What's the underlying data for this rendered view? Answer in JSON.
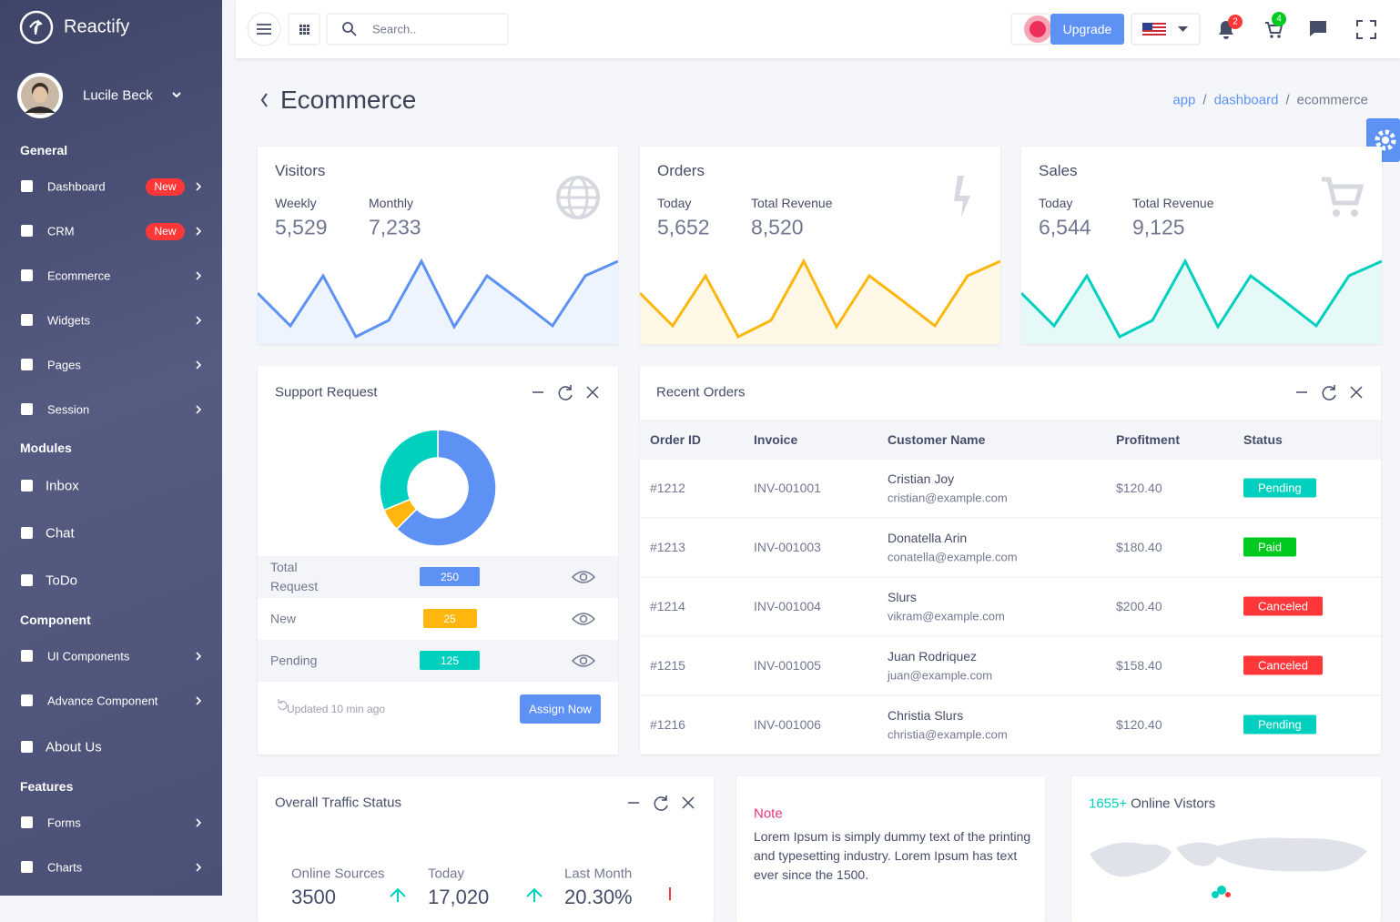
{
  "sidebar": {
    "brand": "Reactify",
    "user": "Lucile Beck",
    "groups": [
      {
        "title": "General",
        "items": [
          {
            "label": "Dashboard",
            "badge": "New",
            "submenu": true
          },
          {
            "label": "CRM",
            "badge": "New",
            "submenu": true
          },
          {
            "label": "Ecommerce",
            "submenu": true
          },
          {
            "label": "Widgets",
            "submenu": true
          },
          {
            "label": "Pages",
            "submenu": true
          },
          {
            "label": "Session",
            "submenu": true
          }
        ]
      },
      {
        "title": "Modules",
        "items": [
          {
            "label": "Inbox"
          },
          {
            "label": "Chat"
          },
          {
            "label": "ToDo"
          }
        ]
      },
      {
        "title": "Component",
        "items": [
          {
            "label": "UI Components",
            "submenu": true
          },
          {
            "label": "Advance Component",
            "submenu": true
          },
          {
            "label": "About Us"
          }
        ]
      },
      {
        "title": "Features",
        "items": [
          {
            "label": "Forms",
            "submenu": true
          },
          {
            "label": "Charts",
            "submenu": true
          }
        ]
      }
    ]
  },
  "header": {
    "search": "Search..",
    "upgrade": "Upgrade",
    "notifications": 2,
    "cart": 4
  },
  "page": {
    "title": "Ecommerce",
    "breadcrumb": [
      "app",
      "dashboard",
      "ecommerce"
    ]
  },
  "stats": [
    {
      "title": "Visitors",
      "color": "#5d92f4",
      "metrics": [
        {
          "label": "Weekly",
          "value": "5,529"
        },
        {
          "label": "Monthly",
          "value": "7,233"
        }
      ],
      "sparkline": [
        56,
        20,
        75,
        8,
        26,
        91,
        19,
        75,
        48,
        20,
        75,
        91
      ]
    },
    {
      "title": "Orders",
      "color": "#ffb70f",
      "metrics": [
        {
          "label": "Today",
          "value": "5,652"
        },
        {
          "label": "Total Revenue",
          "value": "8,520"
        }
      ],
      "sparkline": [
        56,
        20,
        75,
        8,
        26,
        91,
        19,
        75,
        48,
        20,
        75,
        91
      ]
    },
    {
      "title": "Sales",
      "color": "#00d0bd",
      "metrics": [
        {
          "label": "Today",
          "value": "6,544"
        },
        {
          "label": "Total Revenue",
          "value": "9,125"
        }
      ],
      "sparkline": [
        56,
        20,
        75,
        8,
        26,
        91,
        19,
        75,
        48,
        20,
        75,
        91
      ]
    }
  ],
  "support": {
    "title": "Support Request",
    "rows": [
      {
        "label": "Total Request",
        "value": 250,
        "color": "#5d92f4"
      },
      {
        "label": "New",
        "value": 25,
        "color": "#ffb70f"
      },
      {
        "label": "Pending",
        "value": 125,
        "color": "#00d0bd"
      }
    ],
    "updated": "Updated 10 min ago",
    "button": "Assign Now"
  },
  "orders": {
    "title": "Recent Orders",
    "columns": [
      "Order ID",
      "Invoice",
      "Customer Name",
      "Profitment",
      "Status"
    ],
    "rows": [
      {
        "id": "#1212",
        "invoice": "INV-001001",
        "name": "Cristian Joy",
        "email": "cristian@example.com",
        "profit": "$120.40",
        "status": "Pending",
        "status_color": "#00d0bd"
      },
      {
        "id": "#1213",
        "invoice": "INV-001003",
        "name": "Donatella Arin",
        "email": "conatella@example.com",
        "profit": "$180.40",
        "status": "Paid",
        "status_color": "#00c91f"
      },
      {
        "id": "#1214",
        "invoice": "INV-001004",
        "name": "Slurs",
        "email": "vikram@example.com",
        "profit": "$200.40",
        "status": "Canceled",
        "status_color": "#ff3739"
      },
      {
        "id": "#1215",
        "invoice": "INV-001005",
        "name": "Juan Rodriquez",
        "email": "juan@example.com",
        "profit": "$158.40",
        "status": "Canceled",
        "status_color": "#ff3739"
      },
      {
        "id": "#1216",
        "invoice": "INV-001006",
        "name": "Christia Slurs",
        "email": "christia@example.com",
        "profit": "$120.40",
        "status": "Pending",
        "status_color": "#00d0bd"
      }
    ]
  },
  "traffic": {
    "title": "Overall Traffic Status",
    "metrics": [
      {
        "label": "Online Sources",
        "value": "3500"
      },
      {
        "label": "Today",
        "value": "17,020"
      },
      {
        "label": "Last Month",
        "value": "20.30%"
      }
    ]
  },
  "note": {
    "title": "Note",
    "text": "Lorem Ipsum is simply dummy text of the printing and typesetting industry. Lorem Ipsum has text ever since the 1500."
  },
  "visitors": {
    "count": "1655+",
    "title": "Online Vistors"
  }
}
